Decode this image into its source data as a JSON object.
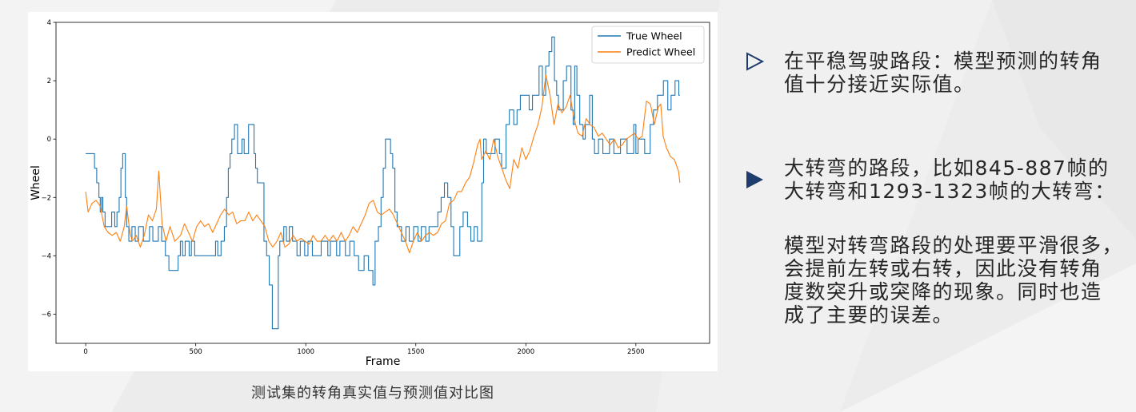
{
  "slide": {
    "caption": "测试集的转角真实值与预测值对比图",
    "bullets": [
      {
        "icon": "outline-triangle-icon",
        "lines": [
          "在平稳驾驶路段：模型预测的转角",
          "值十分接近实际值。"
        ]
      },
      {
        "icon": "filled-triangle-icon",
        "lines": [
          "大转弯的路段，比如845-887帧的",
          "大转弯和1293-1323帧的大转弯："
        ]
      }
    ],
    "paragraph": [
      "模型对转弯路段的处理要平滑很多，",
      "会提前左转或右转，因此没有转角",
      "度数突升或突降的现象。同时也造",
      "成了主要的误差。"
    ],
    "colors": {
      "accent": "#1f3c6e",
      "text": "#262626"
    }
  },
  "chart_data": {
    "type": "line",
    "title": "",
    "xlabel": "Frame",
    "ylabel": "Wheel",
    "xlim": [
      -135,
      2835
    ],
    "ylim": [
      -7,
      4
    ],
    "xticks": [
      0,
      500,
      1000,
      1500,
      2000,
      2500
    ],
    "xtick_labels": [
      "0",
      "500",
      "1000",
      "1500",
      "2000",
      "2500"
    ],
    "yticks": [
      -6,
      -4,
      -2,
      0,
      2,
      4
    ],
    "ytick_labels": [
      "−6",
      "−4",
      "−2",
      "0",
      "2",
      "4"
    ],
    "grid": false,
    "legend": "top-right",
    "series": [
      {
        "name": "True Wheel",
        "color": "#1f77b4",
        "drawstyle": "steps-post",
        "points": [
          [
            0,
            -0.5
          ],
          [
            40,
            -1.0
          ],
          [
            50,
            -1.5
          ],
          [
            60,
            -2.0
          ],
          [
            66,
            -2.5
          ],
          [
            72,
            -2.0
          ],
          [
            78,
            -2.5
          ],
          [
            88,
            -3.0
          ],
          [
            118,
            -2.5
          ],
          [
            132,
            -3.0
          ],
          [
            142,
            -2.5
          ],
          [
            152,
            -2.0
          ],
          [
            160,
            -1.0
          ],
          [
            168,
            -0.5
          ],
          [
            180,
            -2.0
          ],
          [
            186,
            -3.0
          ],
          [
            196,
            -3.5
          ],
          [
            210,
            -3.0
          ],
          [
            225,
            -3.5
          ],
          [
            240,
            -3.0
          ],
          [
            262,
            -3.5
          ],
          [
            290,
            -3.0
          ],
          [
            305,
            -3.5
          ],
          [
            330,
            -3.0
          ],
          [
            345,
            -3.5
          ],
          [
            362,
            -4.0
          ],
          [
            378,
            -4.5
          ],
          [
            420,
            -4.0
          ],
          [
            430,
            -3.5
          ],
          [
            440,
            -4.0
          ],
          [
            452,
            -3.5
          ],
          [
            470,
            -4.0
          ],
          [
            480,
            -3.5
          ],
          [
            495,
            -4.0
          ],
          [
            590,
            -3.5
          ],
          [
            600,
            -4.0
          ],
          [
            615,
            -3.5
          ],
          [
            630,
            -3.0
          ],
          [
            640,
            -2.0
          ],
          [
            648,
            -1.0
          ],
          [
            656,
            -0.5
          ],
          [
            664,
            0.0
          ],
          [
            676,
            0.5
          ],
          [
            690,
            -0.5
          ],
          [
            710,
            0.0
          ],
          [
            720,
            -0.5
          ],
          [
            740,
            0.5
          ],
          [
            765,
            -0.5
          ],
          [
            772,
            -1.0
          ],
          [
            780,
            -1.5
          ],
          [
            810,
            -3.5
          ],
          [
            822,
            -4.0
          ],
          [
            834,
            -5.0
          ],
          [
            848,
            -6.5
          ],
          [
            875,
            -4.0
          ],
          [
            882,
            -3.5
          ],
          [
            900,
            -3.0
          ],
          [
            912,
            -3.5
          ],
          [
            925,
            -3.0
          ],
          [
            940,
            -3.5
          ],
          [
            960,
            -4.0
          ],
          [
            975,
            -3.5
          ],
          [
            995,
            -4.0
          ],
          [
            1010,
            -3.5
          ],
          [
            1030,
            -4.0
          ],
          [
            1070,
            -3.5
          ],
          [
            1100,
            -4.0
          ],
          [
            1112,
            -3.5
          ],
          [
            1140,
            -4.0
          ],
          [
            1155,
            -3.5
          ],
          [
            1180,
            -4.0
          ],
          [
            1200,
            -3.5
          ],
          [
            1220,
            -4.0
          ],
          [
            1240,
            -4.5
          ],
          [
            1265,
            -4.0
          ],
          [
            1285,
            -4.5
          ],
          [
            1305,
            -5.0
          ],
          [
            1315,
            -3.5
          ],
          [
            1330,
            -3.0
          ],
          [
            1342,
            -2.0
          ],
          [
            1352,
            -1.0
          ],
          [
            1362,
            0.0
          ],
          [
            1385,
            -0.5
          ],
          [
            1395,
            -1.0
          ],
          [
            1405,
            -2.5
          ],
          [
            1415,
            -3.0
          ],
          [
            1435,
            -3.5
          ],
          [
            1455,
            -3.0
          ],
          [
            1470,
            -3.5
          ],
          [
            1490,
            -3.0
          ],
          [
            1510,
            -3.5
          ],
          [
            1525,
            -3.0
          ],
          [
            1545,
            -3.5
          ],
          [
            1560,
            -3.0
          ],
          [
            1600,
            -2.5
          ],
          [
            1615,
            -2.0
          ],
          [
            1630,
            -1.5
          ],
          [
            1645,
            -2.0
          ],
          [
            1660,
            -3.0
          ],
          [
            1672,
            -4.0
          ],
          [
            1700,
            -3.0
          ],
          [
            1715,
            -2.5
          ],
          [
            1735,
            -3.0
          ],
          [
            1750,
            -3.5
          ],
          [
            1765,
            -3.0
          ],
          [
            1780,
            -3.5
          ],
          [
            1800,
            -1.5
          ],
          [
            1808,
            0.0
          ],
          [
            1820,
            -0.5
          ],
          [
            1860,
            0.0
          ],
          [
            1880,
            -0.5
          ],
          [
            1890,
            -1.0
          ],
          [
            1910,
            0.5
          ],
          [
            1925,
            1.0
          ],
          [
            1945,
            0.5
          ],
          [
            1960,
            1.0
          ],
          [
            1975,
            1.5
          ],
          [
            2015,
            1.0
          ],
          [
            2030,
            1.5
          ],
          [
            2060,
            2.5
          ],
          [
            2075,
            1.5
          ],
          [
            2090,
            2.5
          ],
          [
            2105,
            3.0
          ],
          [
            2118,
            3.5
          ],
          [
            2130,
            2.0
          ],
          [
            2140,
            1.5
          ],
          [
            2148,
            1.0
          ],
          [
            2170,
            2.0
          ],
          [
            2185,
            2.5
          ],
          [
            2205,
            1.0
          ],
          [
            2215,
            0.5
          ],
          [
            2222,
            2.5
          ],
          [
            2232,
            1.5
          ],
          [
            2245,
            0.5
          ],
          [
            2260,
            0.0
          ],
          [
            2270,
            0.5
          ],
          [
            2290,
            1.5
          ],
          [
            2302,
            0.0
          ],
          [
            2312,
            -0.5
          ],
          [
            2330,
            0.0
          ],
          [
            2350,
            -0.5
          ],
          [
            2380,
            0.0
          ],
          [
            2400,
            -0.5
          ],
          [
            2430,
            0.0
          ],
          [
            2460,
            -0.5
          ],
          [
            2490,
            0.5
          ],
          [
            2500,
            -0.5
          ],
          [
            2510,
            0.0
          ],
          [
            2540,
            -0.5
          ],
          [
            2565,
            0.5
          ],
          [
            2580,
            1.0
          ],
          [
            2598,
            1.5
          ],
          [
            2625,
            2.0
          ],
          [
            2645,
            1.0
          ],
          [
            2660,
            1.5
          ],
          [
            2678,
            2.0
          ],
          [
            2695,
            1.5
          ],
          [
            2700,
            1.5
          ]
        ]
      },
      {
        "name": "Predict Wheel",
        "color": "#ff7f0e",
        "drawstyle": "default",
        "points": [
          [
            0,
            -1.8
          ],
          [
            11,
            -2.5
          ],
          [
            29,
            -2.2
          ],
          [
            47,
            -2.1
          ],
          [
            66,
            -2.3
          ],
          [
            84,
            -3.0
          ],
          [
            102,
            -3.2
          ],
          [
            120,
            -3.3
          ],
          [
            139,
            -3.2
          ],
          [
            157,
            -3.5
          ],
          [
            175,
            -3.0
          ],
          [
            186,
            -2.3
          ],
          [
            201,
            -3.2
          ],
          [
            212,
            -3.5
          ],
          [
            230,
            -3.3
          ],
          [
            248,
            -3.7
          ],
          [
            266,
            -3.3
          ],
          [
            285,
            -2.6
          ],
          [
            303,
            -2.8
          ],
          [
            321,
            -2.4
          ],
          [
            332,
            -1.1
          ],
          [
            347,
            -2.9
          ],
          [
            365,
            -3.5
          ],
          [
            383,
            -3.0
          ],
          [
            405,
            -3.5
          ],
          [
            431,
            -3.3
          ],
          [
            449,
            -2.9
          ],
          [
            467,
            -3.2
          ],
          [
            485,
            -3.5
          ],
          [
            504,
            -3.0
          ],
          [
            522,
            -2.8
          ],
          [
            540,
            -3.0
          ],
          [
            558,
            -2.9
          ],
          [
            577,
            -3.2
          ],
          [
            595,
            -2.9
          ],
          [
            613,
            -2.6
          ],
          [
            631,
            -2.4
          ],
          [
            650,
            -2.6
          ],
          [
            668,
            -2.5
          ],
          [
            686,
            -2.9
          ],
          [
            704,
            -2.8
          ],
          [
            723,
            -2.8
          ],
          [
            741,
            -2.5
          ],
          [
            759,
            -2.8
          ],
          [
            777,
            -2.6
          ],
          [
            796,
            -2.8
          ],
          [
            814,
            -3.0
          ],
          [
            832,
            -3.5
          ],
          [
            850,
            -3.7
          ],
          [
            869,
            -3.5
          ],
          [
            887,
            -3.2
          ],
          [
            905,
            -3.7
          ],
          [
            923,
            -3.6
          ],
          [
            942,
            -3.3
          ],
          [
            960,
            -3.5
          ],
          [
            978,
            -3.4
          ],
          [
            996,
            -3.5
          ],
          [
            1015,
            -3.6
          ],
          [
            1033,
            -3.3
          ],
          [
            1051,
            -3.5
          ],
          [
            1069,
            -3.5
          ],
          [
            1088,
            -3.3
          ],
          [
            1106,
            -3.5
          ],
          [
            1124,
            -3.3
          ],
          [
            1142,
            -3.5
          ],
          [
            1161,
            -3.2
          ],
          [
            1179,
            -3.5
          ],
          [
            1197,
            -3.3
          ],
          [
            1215,
            -3.0
          ],
          [
            1234,
            -3.2
          ],
          [
            1252,
            -2.9
          ],
          [
            1270,
            -2.6
          ],
          [
            1288,
            -2.2
          ],
          [
            1307,
            -2.1
          ],
          [
            1325,
            -2.5
          ],
          [
            1343,
            -2.6
          ],
          [
            1361,
            -2.5
          ],
          [
            1380,
            -2.4
          ],
          [
            1398,
            -2.6
          ],
          [
            1416,
            -2.9
          ],
          [
            1434,
            -3.2
          ],
          [
            1453,
            -3.5
          ],
          [
            1471,
            -3.9
          ],
          [
            1489,
            -3.5
          ],
          [
            1507,
            -3.2
          ],
          [
            1526,
            -3.5
          ],
          [
            1544,
            -3.3
          ],
          [
            1562,
            -3.2
          ],
          [
            1580,
            -3.3
          ],
          [
            1599,
            -3.2
          ],
          [
            1617,
            -2.9
          ],
          [
            1635,
            -2.8
          ],
          [
            1653,
            -2.2
          ],
          [
            1672,
            -2.1
          ],
          [
            1690,
            -1.8
          ],
          [
            1708,
            -1.8
          ],
          [
            1726,
            -1.5
          ],
          [
            1745,
            -1.3
          ],
          [
            1763,
            -0.8
          ],
          [
            1781,
            -0.2
          ],
          [
            1792,
            0.0
          ],
          [
            1799,
            -0.7
          ],
          [
            1818,
            -0.4
          ],
          [
            1836,
            -0.7
          ],
          [
            1854,
            0.0
          ],
          [
            1872,
            -0.6
          ],
          [
            1891,
            -1.0
          ],
          [
            1909,
            -1.4
          ],
          [
            1927,
            -1.7
          ],
          [
            1945,
            -0.7
          ],
          [
            1964,
            -1.0
          ],
          [
            1982,
            -0.3
          ],
          [
            2000,
            -0.7
          ],
          [
            2018,
            -0.4
          ],
          [
            2037,
            0.1
          ],
          [
            2055,
            0.5
          ],
          [
            2073,
            1.1
          ],
          [
            2091,
            2.2
          ],
          [
            2110,
            1.5
          ],
          [
            2128,
            0.5
          ],
          [
            2146,
            1.2
          ],
          [
            2164,
            0.9
          ],
          [
            2183,
            1.1
          ],
          [
            2201,
            1.5
          ],
          [
            2219,
            0.7
          ],
          [
            2237,
            0.2
          ],
          [
            2256,
            0.1
          ],
          [
            2274,
            0.7
          ],
          [
            2292,
            0.5
          ],
          [
            2310,
            0.4
          ],
          [
            2329,
            0.1
          ],
          [
            2347,
            0.2
          ],
          [
            2365,
            0.0
          ],
          [
            2383,
            -0.2
          ],
          [
            2402,
            0.0
          ],
          [
            2420,
            -0.3
          ],
          [
            2438,
            -0.2
          ],
          [
            2456,
            0.0
          ],
          [
            2475,
            0.1
          ],
          [
            2493,
            0.2
          ],
          [
            2511,
            0.0
          ],
          [
            2529,
            0.1
          ],
          [
            2548,
            1.3
          ],
          [
            2566,
            1.2
          ],
          [
            2584,
            0.5
          ],
          [
            2602,
            1.1
          ],
          [
            2613,
            1.2
          ],
          [
            2624,
            0.1
          ],
          [
            2639,
            -0.3
          ],
          [
            2657,
            -0.6
          ],
          [
            2675,
            -0.7
          ],
          [
            2694,
            -1.1
          ],
          [
            2700,
            -1.5
          ]
        ]
      }
    ]
  }
}
